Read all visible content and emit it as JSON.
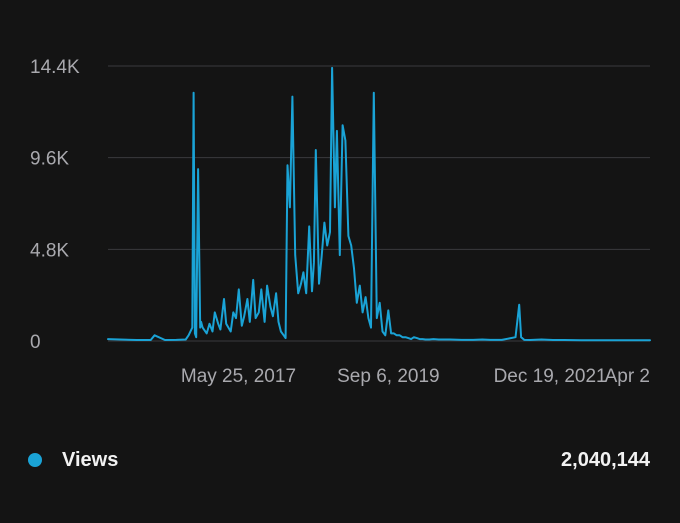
{
  "chart_data": {
    "type": "line",
    "title": "",
    "xlabel": "",
    "ylabel": "",
    "grid": true,
    "ylim": [
      0,
      14400
    ],
    "y_ticks": [
      {
        "value": 0,
        "label": "0"
      },
      {
        "value": 4800,
        "label": "4.8K"
      },
      {
        "value": 9600,
        "label": "9.6K"
      },
      {
        "value": 14400,
        "label": "14.4K"
      }
    ],
    "x_ticks": [
      {
        "date": "2017-05-25",
        "label": "May 25, 2017"
      },
      {
        "date": "2019-09-06",
        "label": "Sep 6, 2019"
      },
      {
        "date": "2021-12-19",
        "label": "Dec 19, 2021"
      },
      {
        "date": "2024-04-02",
        "label": "Apr 2"
      }
    ],
    "x_range": [
      "2016-05-01",
      "2024-04-02"
    ],
    "series": [
      {
        "name": "Views",
        "color": "#1aa3d6",
        "x": [
          "2016-05-01",
          "2016-10-01",
          "2016-12-15",
          "2017-01-05",
          "2017-03-01",
          "2017-05-01",
          "2017-06-20",
          "2017-07-05",
          "2017-07-25",
          "2017-08-01",
          "2017-08-08",
          "2017-08-15",
          "2017-08-25",
          "2017-09-05",
          "2017-09-10",
          "2017-09-18",
          "2017-10-10",
          "2017-10-25",
          "2017-11-10",
          "2017-11-22",
          "2017-12-10",
          "2017-12-22",
          "2018-01-10",
          "2018-01-22",
          "2018-02-15",
          "2018-03-01",
          "2018-03-15",
          "2018-03-30",
          "2018-04-15",
          "2018-04-28",
          "2018-05-15",
          "2018-05-28",
          "2018-06-15",
          "2018-06-28",
          "2018-07-15",
          "2018-07-28",
          "2018-08-15",
          "2018-08-28",
          "2018-09-15",
          "2018-09-28",
          "2018-10-15",
          "2018-10-28",
          "2018-11-10",
          "2018-11-25",
          "2018-12-05",
          "2018-12-15",
          "2018-12-28",
          "2019-01-10",
          "2019-01-25",
          "2019-02-10",
          "2019-02-25",
          "2019-03-10",
          "2019-03-25",
          "2019-04-10",
          "2019-04-25",
          "2019-05-05",
          "2019-05-15",
          "2019-06-01",
          "2019-06-15",
          "2019-06-30",
          "2019-07-15",
          "2019-07-30",
          "2019-08-10",
          "2019-08-25",
          "2019-09-05",
          "2019-09-20",
          "2019-10-05",
          "2019-10-20",
          "2019-11-05",
          "2019-11-20",
          "2019-12-05",
          "2019-12-20",
          "2020-01-05",
          "2020-01-20",
          "2020-02-05",
          "2020-02-20",
          "2020-03-05",
          "2020-03-20",
          "2020-04-05",
          "2020-04-20",
          "2020-05-05",
          "2020-05-20",
          "2020-06-05",
          "2020-06-20",
          "2020-07-05",
          "2020-07-20",
          "2020-08-05",
          "2020-08-20",
          "2020-09-05",
          "2020-09-20",
          "2020-10-05",
          "2020-10-20",
          "2020-11-05",
          "2020-11-20",
          "2020-12-05",
          "2020-12-20",
          "2021-01-10",
          "2021-02-01",
          "2021-03-01",
          "2021-05-01",
          "2021-07-01",
          "2021-09-01",
          "2021-10-20",
          "2021-12-01",
          "2022-02-01",
          "2022-04-15",
          "2022-05-05",
          "2022-05-15",
          "2022-06-01",
          "2022-07-01",
          "2022-09-01",
          "2022-11-01",
          "2023-01-01",
          "2023-04-01",
          "2023-07-01",
          "2023-10-01",
          "2024-01-01",
          "2024-04-02"
        ],
        "values": [
          100,
          50,
          50,
          300,
          50,
          60,
          80,
          300,
          700,
          13000,
          400,
          200,
          9000,
          700,
          1000,
          700,
          400,
          900,
          500,
          1500,
          900,
          600,
          2200,
          900,
          500,
          1500,
          1200,
          2700,
          800,
          1300,
          2200,
          1000,
          3200,
          1200,
          1500,
          2700,
          1000,
          2900,
          1800,
          1300,
          2500,
          1000,
          500,
          300,
          150,
          9200,
          7000,
          12800,
          4500,
          2500,
          3000,
          3600,
          2500,
          6000,
          2600,
          4100,
          10000,
          3000,
          4400,
          6200,
          5000,
          5700,
          14300,
          7000,
          11000,
          4500,
          11300,
          10500,
          5500,
          5000,
          3800,
          2000,
          2900,
          1500,
          2300,
          1200,
          700,
          13000,
          1200,
          2000,
          500,
          300,
          1600,
          400,
          400,
          300,
          300,
          200,
          200,
          150,
          100,
          200,
          150,
          100,
          100,
          80,
          80,
          100,
          80,
          80,
          60,
          60,
          80,
          60,
          60,
          200,
          1900,
          200,
          60,
          50,
          80,
          50,
          50,
          40,
          40,
          40,
          40,
          40
        ]
      }
    ]
  },
  "legend": {
    "label": "Views",
    "total": "2,040,144",
    "color": "#1aa3d6"
  }
}
